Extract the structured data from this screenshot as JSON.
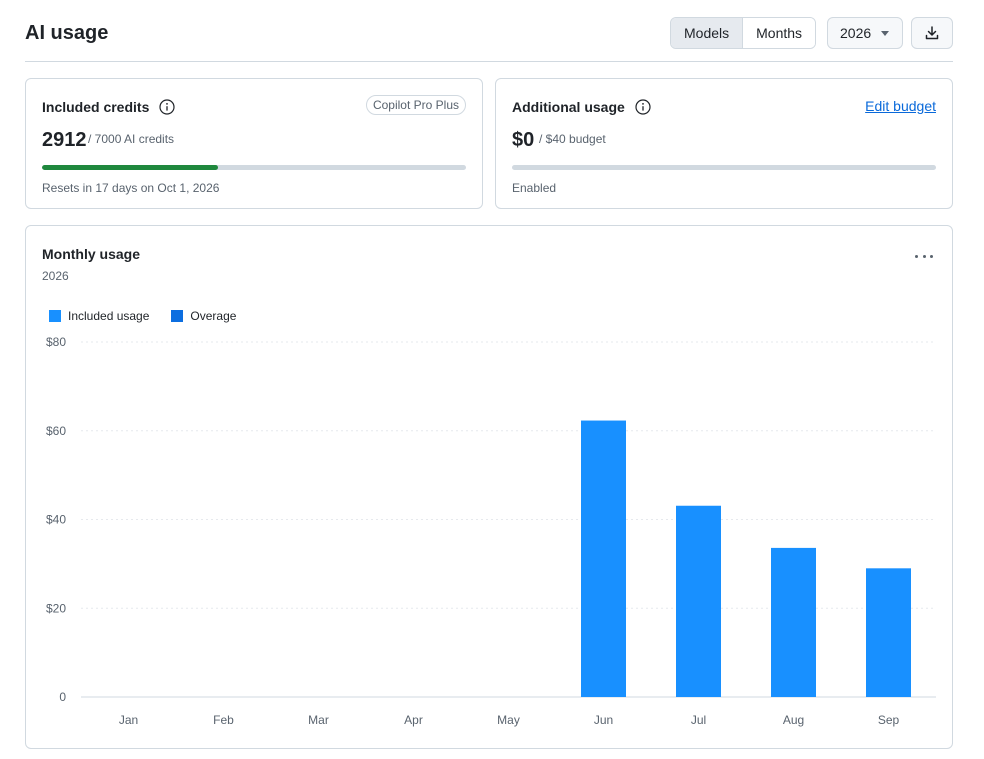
{
  "header": {
    "title": "AI usage",
    "view_options": [
      "Models",
      "Months"
    ],
    "active_view": "Models",
    "year": "2026",
    "download_icon": "download-icon"
  },
  "included_credits": {
    "title": "Included credits",
    "plan_badge": "Copilot Pro Plus",
    "used": "2912",
    "total_label": "/ 7000 AI credits",
    "progress_fraction": 0.416,
    "footer": "Resets in 17 days on Oct 1, 2026",
    "bar_color": "#1f883d"
  },
  "additional_usage": {
    "title": "Additional usage",
    "edit_label": "Edit budget",
    "amount": "$0",
    "budget_label": "/ $40 budget",
    "progress_fraction": 0,
    "status": "Enabled"
  },
  "chart": {
    "title": "Monthly usage",
    "subtitle": "2026",
    "menu_icon": "kebab-menu-icon"
  },
  "chart_data": {
    "type": "bar",
    "categories": [
      "Jan",
      "Feb",
      "Mar",
      "Apr",
      "May",
      "Jun",
      "Jul",
      "Aug",
      "Sep"
    ],
    "series": [
      {
        "name": "Included usage",
        "color": "#1890ff",
        "values": [
          0,
          0,
          0,
          0,
          0,
          62.3,
          43.1,
          33.6,
          29.0
        ]
      },
      {
        "name": "Overage",
        "color": "#0c6ee0",
        "values": [
          0,
          0,
          0,
          0,
          0,
          0,
          0,
          0,
          0
        ]
      }
    ],
    "y_ticks": [
      "0",
      "$20",
      "$40",
      "$60",
      "$80"
    ],
    "ylim": [
      0,
      80
    ],
    "stacked": true,
    "grid": true,
    "legend_position": "top-left"
  }
}
